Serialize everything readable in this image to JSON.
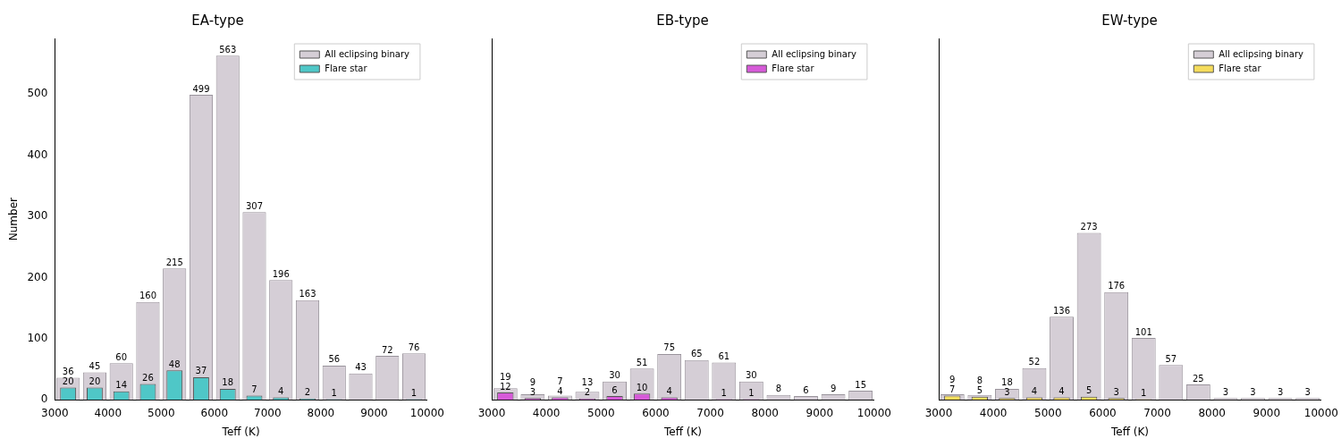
{
  "chart_data": [
    {
      "type": "histogram",
      "title": "EA-type",
      "xlabel": "Teff (K)",
      "ylabel": "Number",
      "bins": [
        3000,
        3500,
        4000,
        4500,
        5000,
        5500,
        6000,
        6500,
        7000,
        7500,
        8000,
        8500,
        9000,
        9500,
        10000
      ],
      "xlim": [
        3000,
        10000
      ],
      "xticks": [
        3000,
        4000,
        5000,
        6000,
        7000,
        8000,
        9000,
        10000
      ],
      "ylim": [
        0,
        591
      ],
      "yticks": [
        0,
        100,
        200,
        300,
        400,
        500
      ],
      "legend": "top right",
      "series": [
        {
          "name": "All eclipsing binary",
          "color": "#d5ced6",
          "values": [
            36,
            45,
            60,
            160,
            215,
            499,
            563,
            307,
            196,
            163,
            56,
            43,
            72,
            76
          ],
          "value_labels": [
            "36",
            "45",
            "60",
            "160",
            "215",
            "499",
            "563",
            "307",
            "196",
            "163",
            "56",
            "43",
            "72",
            "76"
          ]
        },
        {
          "name": "Flare star",
          "color": "#4fc7c7",
          "values": [
            20,
            20,
            14,
            26,
            48,
            37,
            18,
            7,
            4,
            2,
            1,
            0,
            0,
            1
          ],
          "value_labels": [
            "20",
            "20",
            "14",
            "26",
            "48",
            "37",
            "18",
            "7",
            "4",
            "2",
            "1",
            null,
            null,
            "1"
          ]
        }
      ]
    },
    {
      "type": "histogram",
      "title": "EB-type",
      "xlabel": "Teff (K)",
      "bins": [
        3000,
        3500,
        4000,
        4500,
        5000,
        5500,
        6000,
        6500,
        7000,
        7500,
        8000,
        8500,
        9000,
        9500,
        10000
      ],
      "xlim": [
        3000,
        10000
      ],
      "xticks": [
        3000,
        4000,
        5000,
        6000,
        7000,
        8000,
        9000,
        10000
      ],
      "ylim": [
        0,
        591
      ],
      "yticks": [
        0,
        100,
        200,
        300,
        400,
        500
      ],
      "tick_labels": "x",
      "legend": "top right",
      "series": [
        {
          "name": "All eclipsing binary",
          "color": "#d5ced6",
          "values": [
            19,
            9,
            7,
            13,
            30,
            51,
            75,
            65,
            61,
            30,
            8,
            6,
            9,
            15
          ],
          "value_labels": [
            "19",
            "9",
            "7",
            "13",
            "30",
            "51",
            "75",
            "65",
            "61",
            "30",
            "8",
            "6",
            "9",
            "15"
          ]
        },
        {
          "name": "Flare star",
          "color": "#d65ad8",
          "values": [
            12,
            3,
            4,
            2,
            6,
            10,
            4,
            0,
            1,
            1,
            0,
            0,
            0,
            0
          ],
          "value_labels": [
            "12",
            "3",
            "4",
            "2",
            "6",
            "10",
            "4",
            null,
            "1",
            "1",
            null,
            null,
            null,
            null
          ]
        }
      ]
    },
    {
      "type": "histogram",
      "title": "EW-type",
      "xlabel": "Teff (K)",
      "bins": [
        3000,
        3500,
        4000,
        4500,
        5000,
        5500,
        6000,
        6500,
        7000,
        7500,
        8000,
        8500,
        9000,
        9500,
        10000
      ],
      "xlim": [
        3000,
        10000
      ],
      "xticks": [
        3000,
        4000,
        5000,
        6000,
        7000,
        8000,
        9000,
        10000
      ],
      "ylim": [
        0,
        591
      ],
      "yticks": [
        0,
        100,
        200,
        300,
        400,
        500
      ],
      "tick_labels": "x",
      "legend": "top right",
      "series": [
        {
          "name": "All eclipsing binary",
          "color": "#d5ced6",
          "values": [
            9,
            8,
            18,
            52,
            136,
            273,
            176,
            101,
            57,
            25,
            3,
            3,
            3,
            3
          ],
          "value_labels": [
            "9",
            "8",
            "18",
            "52",
            "136",
            "273",
            "176",
            "101",
            "57",
            "25",
            "3",
            "3",
            "3",
            "3"
          ]
        },
        {
          "name": "Flare star",
          "color": "#f5dc5c",
          "values": [
            7,
            5,
            3,
            4,
            4,
            5,
            3,
            1,
            0,
            0,
            0,
            0,
            0,
            0
          ],
          "value_labels": [
            "7",
            "5",
            "3",
            "4",
            "4",
            "5",
            "3",
            "1",
            null,
            null,
            null,
            null,
            null,
            null
          ]
        }
      ]
    }
  ]
}
